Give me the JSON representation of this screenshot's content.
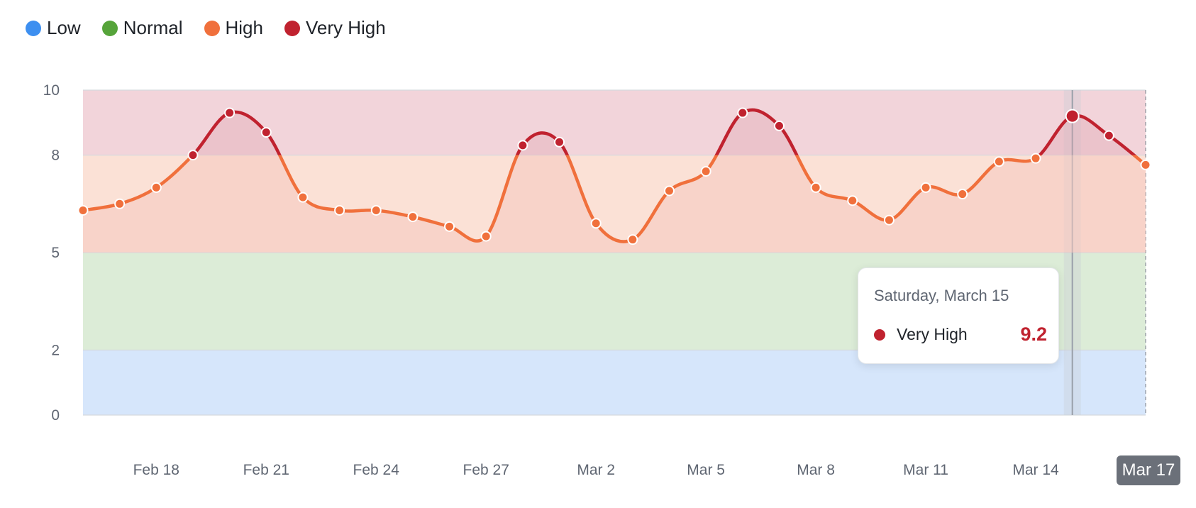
{
  "legend": {
    "items": [
      {
        "label": "Low",
        "color": "#3d8ff0"
      },
      {
        "label": "Normal",
        "color": "#56a43a"
      },
      {
        "label": "High",
        "color": "#f0703c"
      },
      {
        "label": "Very High",
        "color": "#c0222f"
      }
    ]
  },
  "tooltip": {
    "date": "Saturday, March 15",
    "series": "Very High",
    "value": "9.2",
    "color": "#c0222f"
  },
  "x_badge": "Mar 17",
  "chart_data": {
    "type": "area",
    "title": "",
    "xlabel": "",
    "ylabel": "",
    "x": [
      "Feb 16",
      "Feb 17",
      "Feb 18",
      "Feb 19",
      "Feb 20",
      "Feb 21",
      "Feb 22",
      "Feb 23",
      "Feb 24",
      "Feb 25",
      "Feb 26",
      "Feb 27",
      "Feb 28",
      "Mar 1",
      "Mar 2",
      "Mar 3",
      "Mar 4",
      "Mar 5",
      "Mar 6",
      "Mar 7",
      "Mar 8",
      "Mar 9",
      "Mar 10",
      "Mar 11",
      "Mar 12",
      "Mar 13",
      "Mar 14",
      "Mar 15",
      "Mar 16",
      "Mar 17"
    ],
    "values": [
      6.3,
      6.5,
      7.0,
      8.0,
      9.3,
      8.7,
      6.7,
      6.3,
      6.3,
      6.1,
      5.8,
      5.5,
      8.3,
      8.4,
      5.9,
      5.4,
      6.9,
      7.5,
      9.3,
      8.9,
      7.0,
      6.6,
      6.0,
      7.0,
      6.8,
      7.8,
      7.9,
      9.2,
      8.6,
      7.7
    ],
    "x_ticks": [
      "Feb 18",
      "Feb 21",
      "Feb 24",
      "Feb 27",
      "Mar 2",
      "Mar 5",
      "Mar 8",
      "Mar 11",
      "Mar 14"
    ],
    "y_ticks": [
      0,
      2,
      5,
      8,
      10
    ],
    "ylim": [
      0,
      10
    ],
    "bands": [
      {
        "name": "Low",
        "from": 0,
        "to": 2,
        "color": "#d6e6fb"
      },
      {
        "name": "Normal",
        "from": 2,
        "to": 5,
        "color": "#dcecd7"
      },
      {
        "name": "High",
        "from": 5,
        "to": 8,
        "color": "#fbe1d6"
      },
      {
        "name": "Very High",
        "from": 8,
        "to": 10,
        "color": "#f2d4da"
      }
    ],
    "colors": {
      "high": "#f0703c",
      "very_high": "#c0222f"
    },
    "highlight": "Mar 15",
    "grid": true
  }
}
